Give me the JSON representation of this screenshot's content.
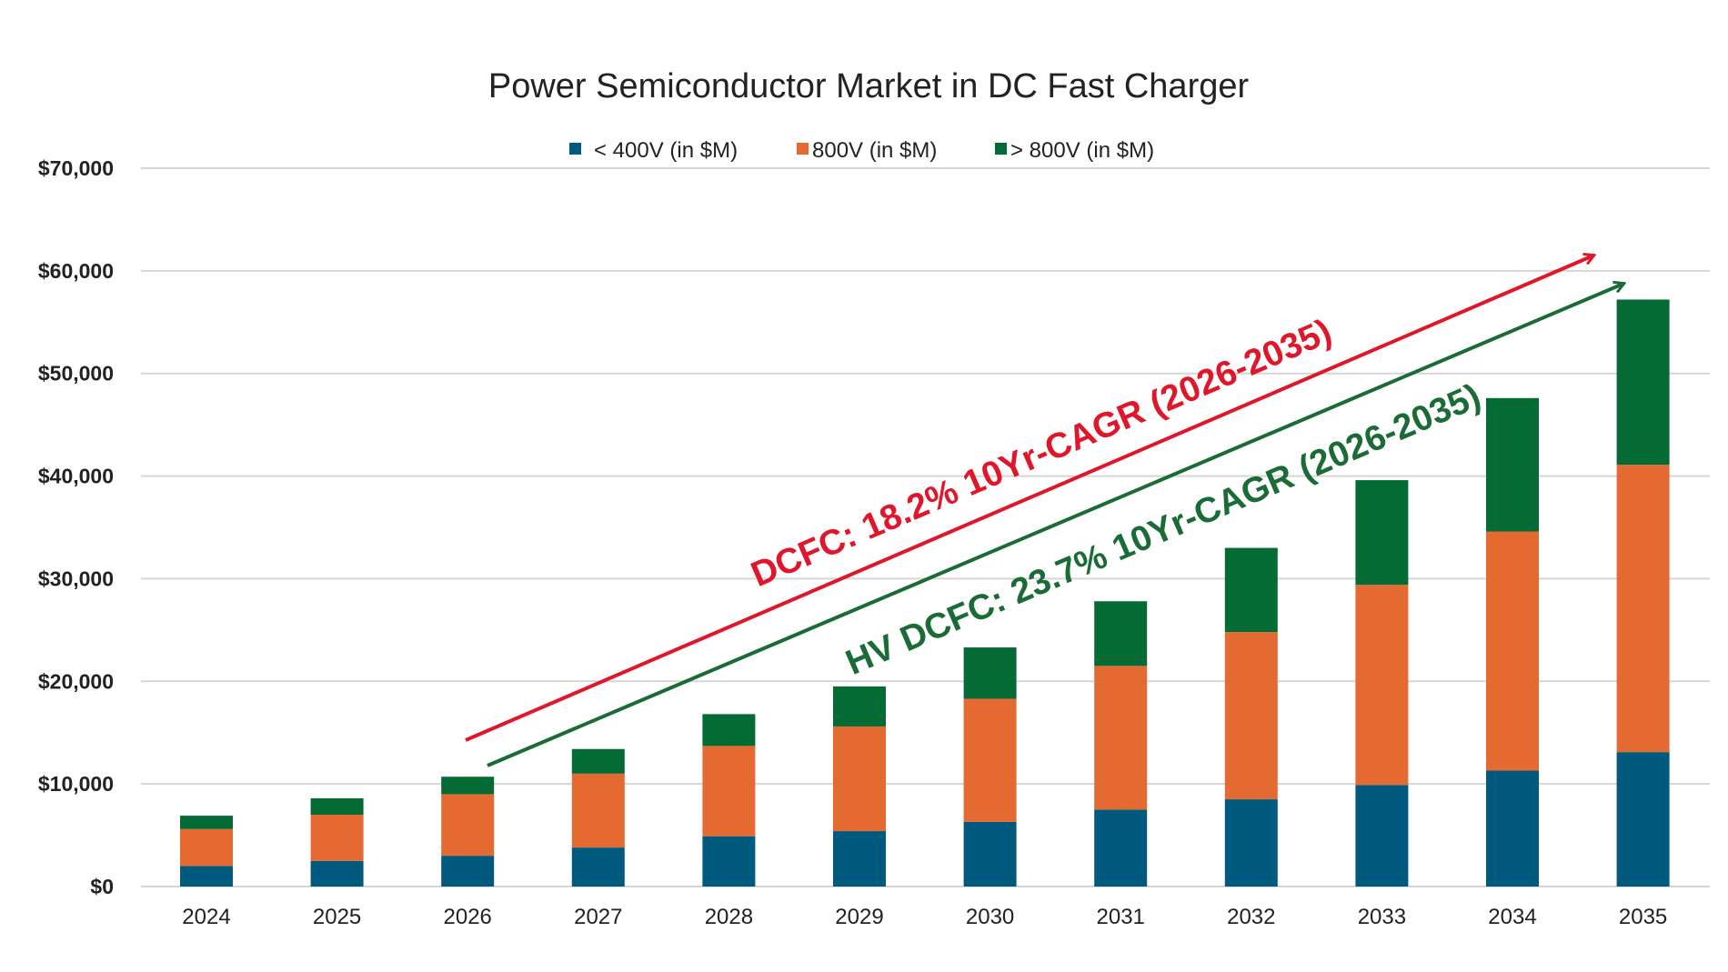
{
  "chart_data": {
    "type": "bar",
    "stacked": true,
    "title": "Power Semiconductor Market in DC Fast Charger",
    "xlabel": "",
    "ylabel": "",
    "categories": [
      "2024",
      "2025",
      "2026",
      "2027",
      "2028",
      "2029",
      "2030",
      "2031",
      "2032",
      "2033",
      "2034",
      "2035"
    ],
    "series": [
      {
        "name": "< 400V (in $M)",
        "color": "#005a7e",
        "values": [
          2000,
          2500,
          3000,
          3800,
          4900,
          5400,
          6300,
          7500,
          8500,
          9900,
          11300,
          13100
        ]
      },
      {
        "name": "800V (in $M)",
        "color": "#e46a31",
        "values": [
          3600,
          4500,
          6000,
          7200,
          8800,
          10200,
          12000,
          14000,
          16300,
          19500,
          23300,
          28000
        ]
      },
      {
        "name": "> 800V (in $M)",
        "color": "#036b33",
        "values": [
          1300,
          1600,
          1700,
          2400,
          3100,
          3900,
          5000,
          6300,
          8200,
          10200,
          13000,
          16100
        ]
      }
    ],
    "ylim": [
      0,
      70000
    ],
    "yticks": [
      "$0",
      "$10,000",
      "$20,000",
      "$30,000",
      "$40,000",
      "$50,000",
      "$60,000",
      "$70,000"
    ],
    "grid": true,
    "legend_position": "top",
    "annotations": [
      {
        "text": "DCFC: 18.2% 10Yr-CAGR (2026-2035)",
        "color": "#e0162b"
      },
      {
        "text": "HV DCFC: 23.7% 10Yr-CAGR (2026-2035)",
        "color": "#1a6b35"
      }
    ]
  }
}
